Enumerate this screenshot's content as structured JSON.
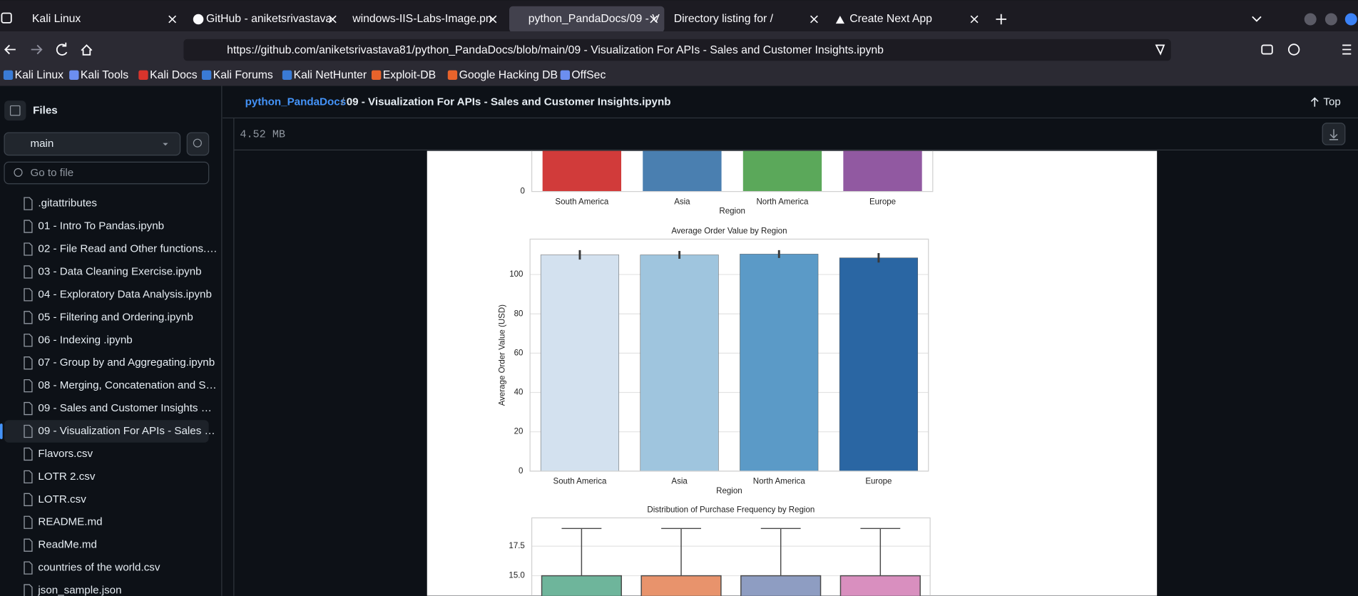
{
  "browser": {
    "tabs": [
      "Kali Linux",
      "GitHub - aniketsrivastava",
      "windows-IIS-Labs-Image.pn",
      "python_PandaDocs/09 - V",
      "Directory listing for /",
      "Create Next App"
    ],
    "url": "https://github.com/aniketsrivastava81/python_PandaDocs/blob/main/09 - Visualization For APIs - Sales and Customer Insights.ipynb",
    "bookmarks": [
      "Kali Linux",
      "Kali Tools",
      "Kali Docs",
      "Kali Forums",
      "Kali NetHunter",
      "Exploit-DB",
      "Google Hacking DB",
      "OffSec"
    ]
  },
  "sidebar": {
    "title": "Files",
    "branch": "main",
    "search_placeholder": "Go to file",
    "files": [
      ".gitattributes",
      "01 - Intro To Pandas.ipynb",
      "02 - File Read and Other functions.…",
      "03 - Data Cleaning Exercise.ipynb",
      "04 - Exploratory Data Analysis.ipynb",
      "05 - Filtering and Ordering.ipynb",
      "06 - Indexing .ipynb",
      "07 - Group by and Aggregating.ipynb",
      "08 - Merging, Concatenation and S…",
      "09 - Sales and Customer Insights …",
      "09 - Visualization For APIs - Sales …",
      "Flavors.csv",
      "LOTR 2.csv",
      "LOTR.csv",
      "README.md",
      "ReadMe.md",
      "countries of the world.csv",
      "json_sample.json"
    ]
  },
  "file_header": {
    "repo": "python_PandaDocs",
    "separator": "/",
    "file": "09 - Visualization For APIs - Sales and Customer Insights.ipynb",
    "top": "Top",
    "size": "4.52 MB"
  },
  "notebook": {
    "charts": [
      {
        "type": "bar",
        "categories": [
          "South America",
          "Asia",
          "North America",
          "Europe"
        ],
        "colors": [
          "#d13b3a",
          "#4a7fb0",
          "#5ba85a",
          "#9159a1"
        ],
        "xlabel": "Region",
        "yticks": [
          0
        ]
      },
      {
        "type": "bar",
        "title": "Average Order Value by Region",
        "categories": [
          "South America",
          "Asia",
          "North America",
          "Europe"
        ],
        "values": [
          110,
          110,
          110.4,
          108.5
        ],
        "errors": [
          2.4,
          2,
          2,
          2.4
        ],
        "colors": [
          "#d3e1ef",
          "#9fc5de",
          "#5b9ac7",
          "#2a66a3"
        ],
        "xlabel": "Region",
        "ylabel": "Average Order Value (USD)",
        "ylim": [
          0,
          118
        ],
        "yticks": [
          0,
          20,
          40,
          60,
          80,
          100
        ],
        "grid": true
      },
      {
        "type": "box",
        "title": "Distribution of Purchase Frequency by Region",
        "q3": [
          15,
          15,
          15,
          15
        ],
        "whisker_high": [
          19,
          19,
          19,
          19
        ],
        "colors": [
          "#6eb59b",
          "#e8936c",
          "#8e9dc2",
          "#d98fbf"
        ],
        "ylim": [
          13.3,
          19.9
        ],
        "yticks": [
          {
            "value": 15,
            "label": "15.0"
          },
          17.5
        ],
        "grid": true
      }
    ]
  }
}
